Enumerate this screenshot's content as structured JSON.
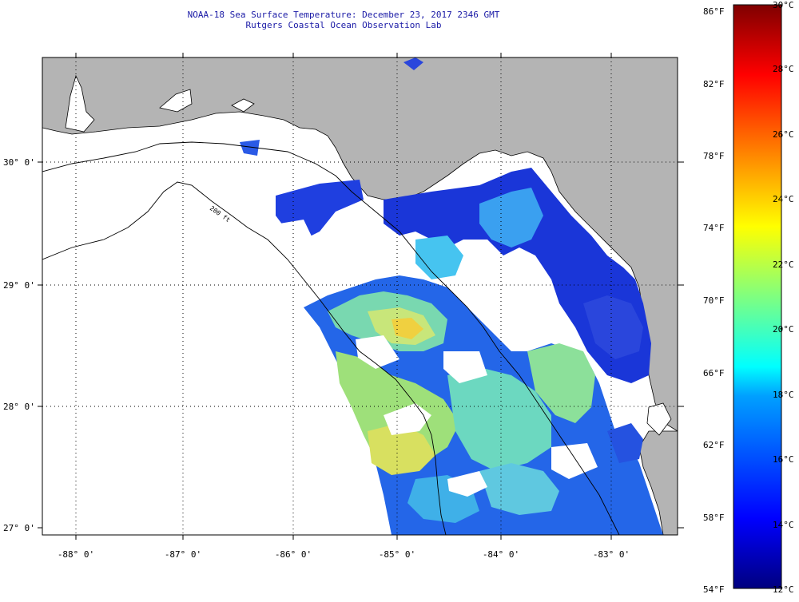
{
  "title": "NOAA-18 Sea Surface Temperature:  December 23, 2017 2346 GMT",
  "subtitle": "Rutgers Coastal Ocean Observation Lab",
  "contour_label": "200 ft",
  "lat_labels": [
    "30° 0'",
    "29° 0'",
    "28° 0'",
    "27° 0'"
  ],
  "lon_labels": [
    "-88° 0'",
    "-87° 0'",
    "-86° 0'",
    "-85° 0'",
    "-84° 0'",
    "-83° 0'"
  ],
  "colorbar": {
    "fahrenheit_labels": [
      "86°F",
      "82°F",
      "78°F",
      "74°F",
      "70°F",
      "66°F",
      "62°F",
      "58°F",
      "54°F"
    ],
    "celsius_labels": [
      "30°C",
      "28°C",
      "26°C",
      "24°C",
      "22°C",
      "20°C",
      "18°C",
      "16°C",
      "14°C",
      "12°C"
    ],
    "min_c": 12,
    "max_c": 30
  },
  "colors": {
    "land": "#b4b4b4",
    "ocean_nodata": "#ffffff",
    "title_text": "#1a1aa6",
    "gridline": "#000000"
  }
}
